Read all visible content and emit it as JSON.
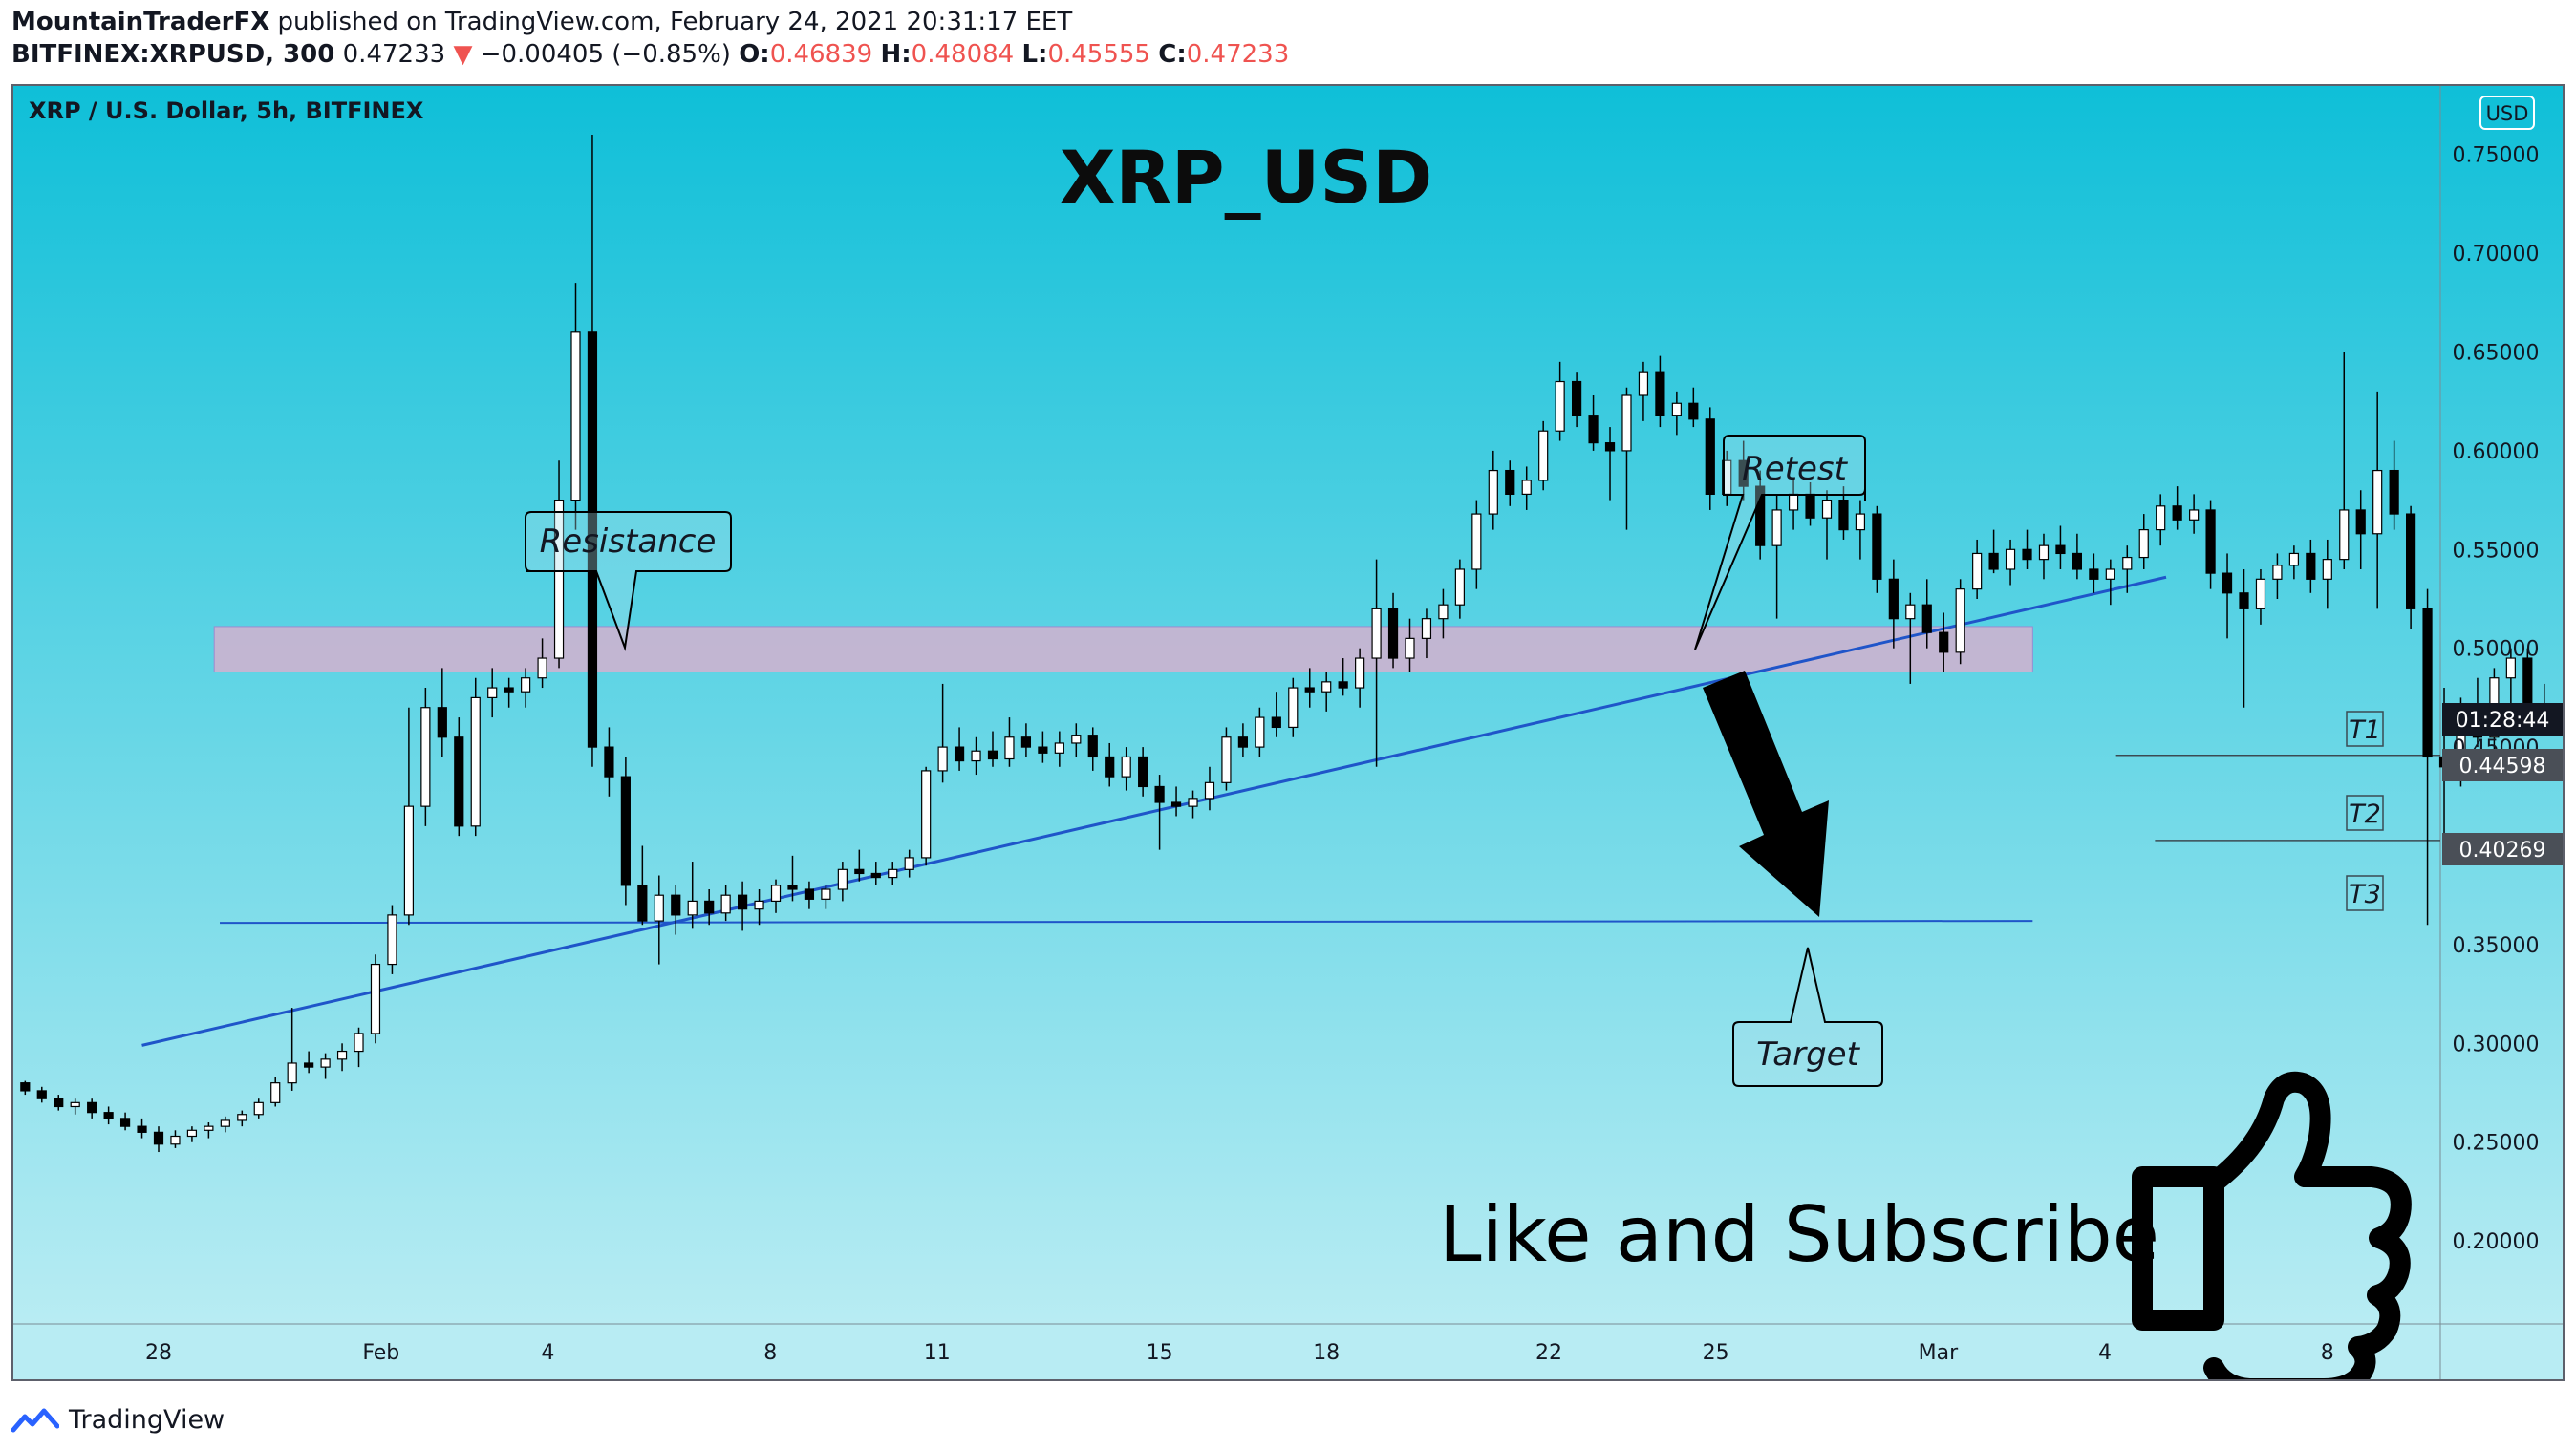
{
  "header": {
    "publisher": "MountainTraderFX",
    "published_text": "published on TradingView.com, February 24, 2021 20:31:17 EET",
    "symbol": "BITFINEX:XRPUSD, 300",
    "last": "0.47233",
    "change": "−0.00405 (−0.85%)",
    "o_label": "O:",
    "o": "0.46839",
    "h_label": "H:",
    "h": "0.48084",
    "l_label": "L:",
    "l": "0.45555",
    "c_label": "C:",
    "c": "0.47233"
  },
  "chart_data": {
    "type": "candlestick",
    "pair_label": "XRP / U.S. Dollar, 5h, BITFINEX",
    "title": "XRP_USD",
    "currency_badge": "USD",
    "ylim": [
      0.155,
      0.775
    ],
    "yticks": [
      "0.75000",
      "0.70000",
      "0.65000",
      "0.60000",
      "0.55000",
      "0.50000",
      "0.45000",
      "0.40000",
      "0.35000",
      "0.30000",
      "0.25000",
      "0.20000"
    ],
    "ytick_values": [
      0.75,
      0.7,
      0.65,
      0.6,
      0.55,
      0.5,
      0.45,
      0.4,
      0.35,
      0.3,
      0.25,
      0.2
    ],
    "x_day_range": [
      -2.7,
      41.3
    ],
    "xticks": [
      "28",
      "Feb",
      "4",
      "8",
      "11",
      "15",
      "18",
      "22",
      "25",
      "Mar",
      "4",
      "8"
    ],
    "xtick_days": [
      0,
      4,
      7,
      11,
      14,
      18,
      21,
      25,
      28,
      32,
      35,
      39
    ],
    "x_axis_origin_date": "2021-01-28",
    "candles": [
      [
        -2.7,
        0.277,
        0.283,
        0.272,
        0.28
      ],
      [
        -2.4,
        0.28,
        0.281,
        0.274,
        0.276
      ],
      [
        -2.1,
        0.276,
        0.278,
        0.27,
        0.272
      ],
      [
        -1.8,
        0.272,
        0.274,
        0.266,
        0.268
      ],
      [
        -1.5,
        0.268,
        0.272,
        0.264,
        0.27
      ],
      [
        -1.2,
        0.27,
        0.272,
        0.262,
        0.265
      ],
      [
        -0.9,
        0.265,
        0.268,
        0.259,
        0.262
      ],
      [
        -0.6,
        0.262,
        0.265,
        0.256,
        0.258
      ],
      [
        -0.3,
        0.258,
        0.262,
        0.252,
        0.255
      ],
      [
        0.0,
        0.255,
        0.258,
        0.245,
        0.249
      ],
      [
        0.3,
        0.249,
        0.256,
        0.247,
        0.253
      ],
      [
        0.6,
        0.253,
        0.258,
        0.25,
        0.256
      ],
      [
        0.9,
        0.256,
        0.26,
        0.252,
        0.258
      ],
      [
        1.2,
        0.258,
        0.263,
        0.255,
        0.261
      ],
      [
        1.5,
        0.261,
        0.266,
        0.258,
        0.264
      ],
      [
        1.8,
        0.264,
        0.272,
        0.262,
        0.27
      ],
      [
        2.1,
        0.27,
        0.283,
        0.268,
        0.28
      ],
      [
        2.4,
        0.28,
        0.318,
        0.276,
        0.29
      ],
      [
        2.7,
        0.29,
        0.296,
        0.285,
        0.288
      ],
      [
        3.0,
        0.288,
        0.295,
        0.282,
        0.292
      ],
      [
        3.3,
        0.292,
        0.3,
        0.286,
        0.296
      ],
      [
        3.6,
        0.296,
        0.308,
        0.288,
        0.305
      ],
      [
        3.9,
        0.305,
        0.345,
        0.3,
        0.34
      ],
      [
        4.2,
        0.34,
        0.37,
        0.335,
        0.365
      ],
      [
        4.5,
        0.365,
        0.47,
        0.36,
        0.42
      ],
      [
        4.8,
        0.42,
        0.48,
        0.41,
        0.47
      ],
      [
        5.1,
        0.47,
        0.49,
        0.445,
        0.455
      ],
      [
        5.4,
        0.455,
        0.465,
        0.405,
        0.41
      ],
      [
        5.7,
        0.41,
        0.485,
        0.405,
        0.475
      ],
      [
        6.0,
        0.475,
        0.49,
        0.465,
        0.48
      ],
      [
        6.3,
        0.48,
        0.485,
        0.47,
        0.478
      ],
      [
        6.6,
        0.478,
        0.49,
        0.47,
        0.485
      ],
      [
        6.9,
        0.485,
        0.505,
        0.48,
        0.495
      ],
      [
        7.2,
        0.495,
        0.595,
        0.49,
        0.575
      ],
      [
        7.5,
        0.575,
        0.685,
        0.56,
        0.66
      ],
      [
        7.8,
        0.66,
        0.76,
        0.44,
        0.45
      ],
      [
        8.1,
        0.45,
        0.46,
        0.425,
        0.435
      ],
      [
        8.4,
        0.435,
        0.445,
        0.37,
        0.38
      ],
      [
        8.7,
        0.38,
        0.4,
        0.36,
        0.362
      ],
      [
        9.0,
        0.362,
        0.385,
        0.34,
        0.375
      ],
      [
        9.3,
        0.375,
        0.38,
        0.355,
        0.365
      ],
      [
        9.6,
        0.365,
        0.392,
        0.358,
        0.372
      ],
      [
        9.9,
        0.372,
        0.378,
        0.36,
        0.366
      ],
      [
        10.2,
        0.366,
        0.38,
        0.362,
        0.375
      ],
      [
        10.5,
        0.375,
        0.382,
        0.357,
        0.368
      ],
      [
        10.8,
        0.368,
        0.378,
        0.36,
        0.372
      ],
      [
        11.1,
        0.372,
        0.383,
        0.366,
        0.38
      ],
      [
        11.4,
        0.38,
        0.395,
        0.372,
        0.378
      ],
      [
        11.7,
        0.378,
        0.382,
        0.368,
        0.373
      ],
      [
        12.0,
        0.373,
        0.38,
        0.368,
        0.378
      ],
      [
        12.3,
        0.378,
        0.392,
        0.372,
        0.388
      ],
      [
        12.6,
        0.388,
        0.398,
        0.382,
        0.386
      ],
      [
        12.9,
        0.386,
        0.392,
        0.38,
        0.384
      ],
      [
        13.2,
        0.384,
        0.392,
        0.38,
        0.388
      ],
      [
        13.5,
        0.388,
        0.398,
        0.384,
        0.394
      ],
      [
        13.8,
        0.394,
        0.44,
        0.39,
        0.438
      ],
      [
        14.1,
        0.438,
        0.482,
        0.432,
        0.45
      ],
      [
        14.4,
        0.45,
        0.46,
        0.438,
        0.443
      ],
      [
        14.7,
        0.443,
        0.455,
        0.436,
        0.448
      ],
      [
        15.0,
        0.448,
        0.458,
        0.44,
        0.444
      ],
      [
        15.3,
        0.444,
        0.465,
        0.44,
        0.455
      ],
      [
        15.6,
        0.455,
        0.462,
        0.445,
        0.45
      ],
      [
        15.9,
        0.45,
        0.458,
        0.442,
        0.447
      ],
      [
        16.2,
        0.447,
        0.458,
        0.44,
        0.452
      ],
      [
        16.5,
        0.452,
        0.462,
        0.445,
        0.456
      ],
      [
        16.8,
        0.456,
        0.46,
        0.438,
        0.445
      ],
      [
        17.1,
        0.445,
        0.452,
        0.43,
        0.435
      ],
      [
        17.4,
        0.435,
        0.45,
        0.428,
        0.445
      ],
      [
        17.7,
        0.445,
        0.45,
        0.425,
        0.43
      ],
      [
        18.0,
        0.43,
        0.436,
        0.398,
        0.422
      ],
      [
        18.3,
        0.422,
        0.43,
        0.415,
        0.42
      ],
      [
        18.6,
        0.42,
        0.428,
        0.414,
        0.424
      ],
      [
        18.9,
        0.424,
        0.44,
        0.418,
        0.432
      ],
      [
        19.2,
        0.432,
        0.46,
        0.428,
        0.455
      ],
      [
        19.5,
        0.455,
        0.462,
        0.445,
        0.45
      ],
      [
        19.8,
        0.45,
        0.47,
        0.445,
        0.465
      ],
      [
        20.1,
        0.465,
        0.478,
        0.455,
        0.46
      ],
      [
        20.4,
        0.46,
        0.485,
        0.455,
        0.48
      ],
      [
        20.7,
        0.48,
        0.49,
        0.47,
        0.478
      ],
      [
        21.0,
        0.478,
        0.488,
        0.468,
        0.483
      ],
      [
        21.3,
        0.483,
        0.495,
        0.476,
        0.48
      ],
      [
        21.6,
        0.48,
        0.5,
        0.47,
        0.495
      ],
      [
        21.9,
        0.495,
        0.545,
        0.44,
        0.52
      ],
      [
        22.2,
        0.52,
        0.528,
        0.49,
        0.495
      ],
      [
        22.5,
        0.495,
        0.515,
        0.488,
        0.505
      ],
      [
        22.8,
        0.505,
        0.52,
        0.495,
        0.515
      ],
      [
        23.1,
        0.515,
        0.53,
        0.505,
        0.522
      ],
      [
        23.4,
        0.522,
        0.545,
        0.515,
        0.54
      ],
      [
        23.7,
        0.54,
        0.575,
        0.53,
        0.568
      ],
      [
        24.0,
        0.568,
        0.6,
        0.56,
        0.59
      ],
      [
        24.3,
        0.59,
        0.595,
        0.572,
        0.578
      ],
      [
        24.6,
        0.578,
        0.592,
        0.57,
        0.585
      ],
      [
        24.9,
        0.585,
        0.615,
        0.58,
        0.61
      ],
      [
        25.2,
        0.61,
        0.645,
        0.605,
        0.635
      ],
      [
        25.5,
        0.635,
        0.64,
        0.612,
        0.618
      ],
      [
        25.8,
        0.618,
        0.628,
        0.6,
        0.604
      ],
      [
        26.1,
        0.604,
        0.612,
        0.575,
        0.6
      ],
      [
        26.4,
        0.6,
        0.632,
        0.56,
        0.628
      ],
      [
        26.7,
        0.628,
        0.645,
        0.615,
        0.64
      ],
      [
        27.0,
        0.64,
        0.648,
        0.612,
        0.618
      ],
      [
        27.3,
        0.618,
        0.63,
        0.608,
        0.624
      ],
      [
        27.6,
        0.624,
        0.632,
        0.612,
        0.616
      ],
      [
        27.9,
        0.616,
        0.622,
        0.57,
        0.578
      ],
      [
        28.2,
        0.578,
        0.6,
        0.572,
        0.595
      ],
      [
        28.5,
        0.595,
        0.605,
        0.575,
        0.582
      ],
      [
        28.8,
        0.582,
        0.59,
        0.545,
        0.552
      ],
      [
        29.1,
        0.552,
        0.578,
        0.515,
        0.57
      ],
      [
        29.4,
        0.57,
        0.585,
        0.56,
        0.578
      ],
      [
        29.7,
        0.578,
        0.584,
        0.562,
        0.566
      ],
      [
        30.0,
        0.566,
        0.58,
        0.545,
        0.575
      ],
      [
        30.3,
        0.575,
        0.582,
        0.555,
        0.56
      ],
      [
        30.6,
        0.56,
        0.575,
        0.545,
        0.568
      ],
      [
        30.9,
        0.568,
        0.572,
        0.528,
        0.535
      ],
      [
        31.2,
        0.535,
        0.545,
        0.5,
        0.515
      ],
      [
        31.5,
        0.515,
        0.528,
        0.482,
        0.522
      ],
      [
        31.8,
        0.522,
        0.535,
        0.5,
        0.508
      ],
      [
        32.1,
        0.508,
        0.518,
        0.488,
        0.498
      ],
      [
        32.4,
        0.498,
        0.535,
        0.492,
        0.53
      ],
      [
        32.7,
        0.53,
        0.555,
        0.525,
        0.548
      ],
      [
        33.0,
        0.548,
        0.56,
        0.538,
        0.54
      ],
      [
        33.3,
        0.54,
        0.555,
        0.532,
        0.55
      ],
      [
        33.6,
        0.55,
        0.56,
        0.54,
        0.545
      ],
      [
        33.9,
        0.545,
        0.558,
        0.535,
        0.552
      ],
      [
        34.2,
        0.552,
        0.562,
        0.54,
        0.548
      ],
      [
        34.5,
        0.548,
        0.558,
        0.535,
        0.54
      ],
      [
        34.8,
        0.54,
        0.548,
        0.528,
        0.535
      ],
      [
        35.1,
        0.535,
        0.545,
        0.522,
        0.54
      ],
      [
        35.4,
        0.54,
        0.552,
        0.528,
        0.546
      ],
      [
        35.7,
        0.546,
        0.568,
        0.54,
        0.56
      ],
      [
        36.0,
        0.56,
        0.578,
        0.552,
        0.572
      ],
      [
        36.3,
        0.572,
        0.582,
        0.56,
        0.565
      ],
      [
        36.6,
        0.565,
        0.578,
        0.558,
        0.57
      ],
      [
        36.9,
        0.57,
        0.575,
        0.53,
        0.538
      ],
      [
        37.2,
        0.538,
        0.548,
        0.505,
        0.528
      ],
      [
        37.5,
        0.528,
        0.54,
        0.47,
        0.52
      ],
      [
        37.8,
        0.52,
        0.54,
        0.512,
        0.535
      ],
      [
        38.1,
        0.535,
        0.548,
        0.525,
        0.542
      ],
      [
        38.4,
        0.542,
        0.552,
        0.535,
        0.548
      ],
      [
        38.7,
        0.548,
        0.555,
        0.528,
        0.535
      ],
      [
        39.0,
        0.535,
        0.555,
        0.52,
        0.545
      ],
      [
        39.3,
        0.545,
        0.65,
        0.54,
        0.57
      ],
      [
        39.6,
        0.57,
        0.58,
        0.54,
        0.558
      ],
      [
        39.9,
        0.558,
        0.63,
        0.52,
        0.59
      ],
      [
        40.2,
        0.59,
        0.605,
        0.56,
        0.568
      ],
      [
        40.5,
        0.568,
        0.572,
        0.51,
        0.52
      ],
      [
        40.8,
        0.52,
        0.53,
        0.36,
        0.445
      ],
      [
        41.1,
        0.445,
        0.48,
        0.405,
        0.44
      ],
      [
        41.4,
        0.44,
        0.475,
        0.43,
        0.468
      ],
      [
        41.7,
        0.468,
        0.485,
        0.45,
        0.455
      ],
      [
        42.0,
        0.455,
        0.49,
        0.448,
        0.485
      ],
      [
        42.3,
        0.485,
        0.5,
        0.47,
        0.495
      ],
      [
        42.6,
        0.495,
        0.5,
        0.465,
        0.47
      ],
      [
        42.9,
        0.47,
        0.482,
        0.46,
        0.472
      ]
    ]
  },
  "axis": {
    "price_tag_time": "01:28:44",
    "t1_price": "0.44598",
    "t2_price": "0.40269"
  },
  "annotations": {
    "resistance": "Resistance",
    "retest": "Retest",
    "target": "Target",
    "t1": "T1",
    "t2": "T2",
    "t3": "T3",
    "cta": "Like and Subscribe"
  },
  "colors": {
    "bg_top": "#0fbfd8",
    "bg_bottom": "#b8ecf3",
    "resistance_zone": "#d3b0cf",
    "trendline": "#1f55c9",
    "support_line": "#1f55c9",
    "candle_up": "#ffffff",
    "candle_down": "#000000"
  },
  "footer": {
    "brand": "TradingView"
  }
}
